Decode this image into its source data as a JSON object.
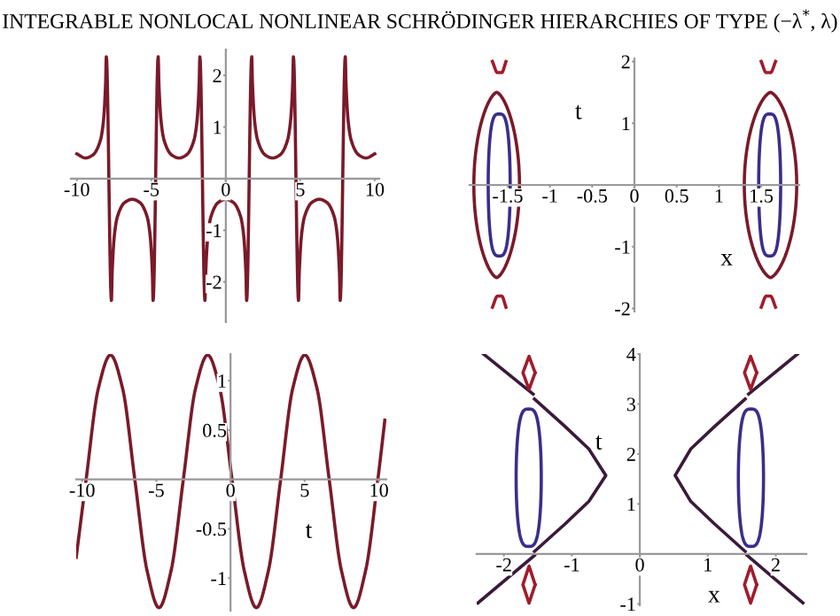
{
  "chart_data": [
    {
      "type": "line",
      "title": "INTEGRABLE NONLOCAL NONLINEAR SCHRÖDINGER HIERARCHIES OF TYPE (−λ$^{*}$, λ)",
      "xlim": [
        -10.4,
        10.3
      ],
      "ylim": [
        -2.78,
        2.5
      ],
      "xticks": [
        -10,
        -5,
        0,
        5,
        10
      ],
      "yticks": [
        -2,
        -1,
        1,
        2
      ],
      "grid": false,
      "legend": false,
      "series": [
        {
          "color": "#7a1a2a",
          "x": [
            -10,
            -9.42,
            -8.92,
            -8.42,
            -8.22,
            -8.07,
            -8.02,
            -7.68,
            -7.63,
            -7.48,
            -7.28,
            -6.78,
            -6.28,
            -5.78,
            -5.28,
            -5.08,
            -4.93,
            -4.88,
            -4.54,
            -4.49,
            -4.34,
            -4.14,
            -3.64,
            -3.14,
            -2.64,
            -2.14,
            -1.94,
            -1.79,
            -1.74,
            -1.4,
            -1.35,
            -1.2,
            -1,
            -0.5,
            0,
            0.5,
            1,
            1.2,
            1.35,
            1.4,
            1.74,
            1.79,
            1.94,
            2.14,
            2.64,
            3.14,
            3.64,
            4.14,
            4.34,
            4.49,
            4.54,
            4.88,
            4.93,
            5.08,
            5.28,
            5.78,
            6.28,
            6.78,
            7.28,
            7.48,
            7.63,
            7.68,
            8.02,
            8.07,
            8.22,
            8.42,
            8.92,
            9.42,
            10
          ],
          "values": [
            0.48,
            0.4,
            0.46,
            0.74,
            1.1,
            1.83,
            2.36,
            -2.36,
            -1.83,
            -1.1,
            -0.74,
            -0.46,
            -0.4,
            -0.46,
            -0.74,
            -1.1,
            -1.83,
            -2.36,
            2.36,
            1.83,
            1.1,
            0.74,
            0.46,
            0.4,
            0.46,
            0.74,
            1.1,
            1.83,
            2.36,
            -2.36,
            -1.83,
            -1.1,
            -0.74,
            -0.46,
            -0.4,
            -0.46,
            -0.74,
            -1.1,
            -1.83,
            -2.36,
            2.36,
            1.83,
            1.1,
            0.74,
            0.46,
            0.4,
            0.46,
            0.74,
            1.1,
            1.83,
            2.36,
            -2.36,
            -1.83,
            -1.1,
            -0.74,
            -0.46,
            -0.4,
            -0.46,
            -0.74,
            -1.1,
            -1.83,
            -2.36,
            2.36,
            1.83,
            1.1,
            0.74,
            0.46,
            0.4,
            0.48
          ]
        }
      ]
    },
    {
      "type": "line",
      "xlabel": "x",
      "ylabel": "t",
      "xlim": [
        -1.95,
        1.95
      ],
      "ylim": [
        -2.05,
        2.05
      ],
      "xticks": [
        -1.5,
        -1,
        -0.5,
        0,
        0.5,
        1,
        1.5
      ],
      "yticks": [
        -2,
        -1,
        1,
        2
      ],
      "grid": false,
      "legend": false,
      "series": [
        {
          "color": "#a01c2c",
          "x": [
            -1.68,
            -1.62,
            -1.57,
            -1.52
          ],
          "values": [
            2.0,
            1.82,
            1.82,
            2.0
          ]
        },
        {
          "color": "#a01c2c",
          "x": [
            -1.68,
            -1.62,
            -1.57,
            -1.52
          ],
          "values": [
            -1.98,
            -1.8,
            -1.8,
            -1.98
          ]
        },
        {
          "color": "#a01c2c",
          "x": [
            1.5,
            1.56,
            1.61,
            1.67
          ],
          "values": [
            2.0,
            1.82,
            1.82,
            2.0
          ]
        },
        {
          "color": "#a01c2c",
          "x": [
            1.5,
            1.56,
            1.61,
            1.67
          ],
          "values": [
            -1.98,
            -1.8,
            -1.8,
            -1.98
          ]
        }
      ]
    },
    {
      "type": "line",
      "xlabel": "t",
      "xlim": [
        -10.4,
        10.5
      ],
      "ylim": [
        -1.33,
        1.27
      ],
      "xticks": [
        -10,
        -5,
        0,
        5,
        10
      ],
      "yticks": [
        -1,
        -0.5,
        0.5,
        1
      ],
      "grid": false,
      "legend": false,
      "series": [
        {
          "color": "#7a1a2a",
          "x": [
            -10.4,
            -9.73,
            -8.91,
            -8.09,
            -7.27,
            -6.45,
            -5.63,
            -4.82,
            -4.0,
            -3.18,
            -2.36,
            -1.54,
            -0.72,
            0.1,
            0.92,
            1.74,
            2.56,
            3.38,
            4.19,
            5.01,
            5.83,
            6.65,
            7.47,
            8.29,
            9.11,
            9.93,
            10.4
          ],
          "values": [
            -0.79,
            0,
            0.92,
            1.26,
            0.92,
            0,
            -0.92,
            -1.3,
            -0.92,
            0,
            0.92,
            1.26,
            0.92,
            0,
            -0.92,
            -1.3,
            -0.92,
            0,
            0.92,
            1.26,
            0.92,
            0,
            -0.92,
            -1.3,
            -0.92,
            0,
            0.6
          ]
        }
      ]
    },
    {
      "type": "line",
      "xlabel": "x",
      "ylabel": "t",
      "xlim": [
        -2.4,
        2.45
      ],
      "ylim": [
        -1.03,
        4.0
      ],
      "xticks": [
        -2,
        -1,
        0,
        1,
        2
      ],
      "yticks": [
        -1,
        1,
        2,
        3,
        4
      ],
      "grid": false,
      "legend": false,
      "series": [
        {
          "color": "#3a1a3a",
          "x": [
            -1.55,
            -1.1,
            -0.75,
            -0.5,
            -0.75,
            -1.1,
            -1.55
          ],
          "values": [
            3.1,
            2.55,
            2.1,
            1.57,
            1.05,
            0.6,
            0.05
          ]
        },
        {
          "color": "#3a1a3a",
          "x": [
            -2.3,
            -1.57
          ],
          "values": [
            4.0,
            3.2
          ]
        },
        {
          "color": "#3a1a3a",
          "x": [
            -1.55,
            -2.38
          ],
          "values": [
            -0.03,
            -0.98
          ]
        },
        {
          "color": "#3a1a3a",
          "x": [
            1.55,
            1.1,
            0.75,
            0.52,
            0.75,
            1.1,
            1.55
          ],
          "values": [
            3.1,
            2.55,
            2.1,
            1.57,
            1.05,
            0.6,
            0.05
          ]
        },
        {
          "color": "#3a1a3a",
          "x": [
            2.32,
            1.6
          ],
          "values": [
            4.0,
            3.2
          ]
        },
        {
          "color": "#3a1a3a",
          "x": [
            1.58,
            2.4
          ],
          "values": [
            -0.03,
            -0.98
          ]
        }
      ]
    }
  ]
}
